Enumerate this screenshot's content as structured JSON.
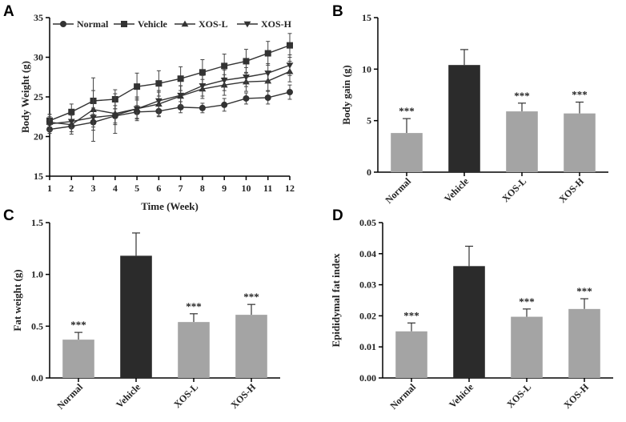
{
  "panels": {
    "A": "A",
    "B": "B",
    "C": "C",
    "D": "D"
  },
  "chart_data": [
    {
      "id": "A",
      "type": "line",
      "title": "",
      "xlabel": "Time (Week)",
      "ylabel": "Body Weight (g)",
      "x": [
        1,
        2,
        3,
        4,
        5,
        6,
        7,
        8,
        9,
        10,
        11,
        12
      ],
      "xticks": [
        "1",
        "2",
        "3",
        "4",
        "5",
        "6",
        "7",
        "8",
        "9",
        "10",
        "11",
        "12"
      ],
      "ylim": [
        15,
        35
      ],
      "yticks": [
        "15",
        "20",
        "25",
        "30",
        "35"
      ],
      "legend_position": "top",
      "series": [
        {
          "name": "Normal",
          "marker": "circle",
          "values": [
            20.9,
            21.3,
            21.8,
            22.6,
            23.1,
            23.2,
            23.7,
            23.6,
            24.0,
            24.8,
            24.9,
            25.6
          ],
          "errors": [
            0.5,
            0.7,
            1.0,
            0.9,
            0.8,
            0.7,
            0.7,
            0.6,
            0.8,
            0.7,
            0.8,
            0.9
          ]
        },
        {
          "name": "Vehicle",
          "marker": "square",
          "values": [
            22.0,
            23.1,
            24.5,
            24.7,
            26.3,
            26.7,
            27.3,
            28.1,
            28.9,
            29.5,
            30.5,
            31.5
          ],
          "errors": [
            0.8,
            1.0,
            1.3,
            1.2,
            1.7,
            1.6,
            1.5,
            1.6,
            1.5,
            1.5,
            1.5,
            1.5
          ]
        },
        {
          "name": "XOS-L",
          "marker": "triangle-up",
          "values": [
            21.8,
            21.5,
            23.4,
            22.9,
            23.5,
            24.1,
            25.1,
            26.0,
            26.5,
            26.9,
            27.0,
            28.2
          ],
          "errors": [
            1.0,
            1.2,
            4.0,
            2.5,
            1.5,
            1.5,
            1.3,
            1.2,
            1.3,
            1.2,
            1.2,
            1.3
          ]
        },
        {
          "name": "XOS-H",
          "marker": "triangle-down",
          "values": [
            21.6,
            21.9,
            22.4,
            22.7,
            23.5,
            24.5,
            25.2,
            26.4,
            27.1,
            27.5,
            28.0,
            29.0
          ],
          "errors": [
            0.9,
            0.8,
            1.2,
            1.2,
            1.3,
            1.3,
            1.2,
            1.3,
            1.3,
            1.2,
            1.2,
            1.3
          ]
        }
      ]
    },
    {
      "id": "B",
      "type": "bar",
      "title": "",
      "xlabel": "",
      "ylabel": "Body gain (g)",
      "categories": [
        "Normal",
        "Vehicle",
        "XOS-L",
        "XOS-H"
      ],
      "values": [
        3.8,
        10.4,
        5.9,
        5.7
      ],
      "errors": [
        1.4,
        1.5,
        0.8,
        1.1
      ],
      "significance": [
        "***",
        "",
        "***",
        "***"
      ],
      "colors": [
        "#a4a4a4",
        "#2b2b2b",
        "#a4a4a4",
        "#a4a4a4"
      ],
      "ylim": [
        0,
        15
      ],
      "yticks": [
        "0",
        "5",
        "10",
        "15"
      ]
    },
    {
      "id": "C",
      "type": "bar",
      "title": "",
      "xlabel": "",
      "ylabel": "Fat weight (g)",
      "categories": [
        "Normal",
        "Vehicle",
        "XOS-L",
        "XOS-H"
      ],
      "values": [
        0.37,
        1.18,
        0.54,
        0.61
      ],
      "errors": [
        0.07,
        0.22,
        0.08,
        0.1
      ],
      "significance": [
        "***",
        "",
        "***",
        "***"
      ],
      "colors": [
        "#a4a4a4",
        "#2b2b2b",
        "#a4a4a4",
        "#a4a4a4"
      ],
      "ylim": [
        0,
        1.5
      ],
      "yticks": [
        "0.0",
        "0.5",
        "1.0",
        "1.5"
      ]
    },
    {
      "id": "D",
      "type": "bar",
      "title": "",
      "xlabel": "",
      "ylabel": "Epididymal fat index",
      "categories": [
        "Normal",
        "Vehicle",
        "XOS-L",
        "XOS-H"
      ],
      "values": [
        0.015,
        0.036,
        0.0197,
        0.0222
      ],
      "errors": [
        0.0027,
        0.0064,
        0.0025,
        0.0033
      ],
      "significance": [
        "***",
        "",
        "***",
        "***"
      ],
      "colors": [
        "#a4a4a4",
        "#2b2b2b",
        "#a4a4a4",
        "#a4a4a4"
      ],
      "ylim": [
        0,
        0.05
      ],
      "yticks": [
        "0.00",
        "0.01",
        "0.02",
        "0.03",
        "0.04",
        "0.05"
      ]
    }
  ]
}
